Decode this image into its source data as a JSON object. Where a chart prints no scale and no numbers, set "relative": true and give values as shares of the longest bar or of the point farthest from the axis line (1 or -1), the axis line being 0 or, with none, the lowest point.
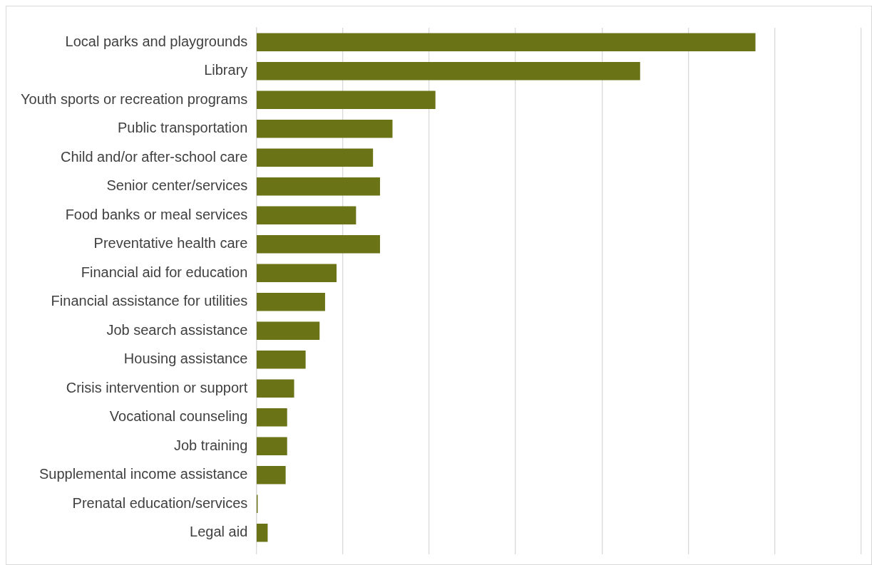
{
  "chart_data": {
    "type": "bar",
    "orientation": "horizontal",
    "relative": true,
    "grid": true,
    "color": "#6b7317",
    "categories": [
      "Local parks and playgrounds",
      "Library",
      "Youth sports or recreation programs",
      "Public transportation",
      "Child and/or after-school care",
      "Senior center/services",
      "Food banks or meal services",
      "Preventative health care",
      "Financial aid for education",
      "Financial assistance for utilities",
      "Job search assistance",
      "Housing assistance",
      "Crisis intervention or support",
      "Vocational counseling",
      "Job training",
      "Supplemental income assistance",
      "Prenatal education/services",
      "Legal aid"
    ],
    "values": [
      1,
      0.769,
      0.359,
      0.273,
      0.234,
      0.248,
      0.2,
      0.248,
      0.161,
      0.138,
      0.127,
      0.099,
      0.076,
      0.062,
      0.062,
      0.059,
      0.003,
      0.023
    ]
  }
}
